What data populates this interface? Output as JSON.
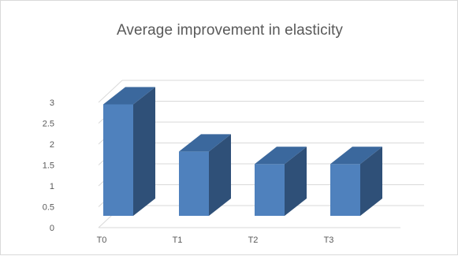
{
  "chart_data": {
    "type": "bar",
    "title": "Average improvement in elasticity",
    "categories": [
      "T0",
      "T1",
      "T2",
      "T3"
    ],
    "values": [
      2.67,
      1.54,
      1.24,
      1.24
    ],
    "ylim": [
      0,
      3
    ],
    "yticks": [
      "0",
      "0.5",
      "1",
      "1.5",
      "2",
      "2.5",
      "3"
    ],
    "xlabel": "",
    "ylabel": "",
    "grid": true,
    "legend": "none",
    "three_d": true,
    "colors": {
      "bar_front": "#4f81bd",
      "bar_side": "#2f5078",
      "bar_top": "#3b689d",
      "grid": "#d9d9d9"
    }
  }
}
